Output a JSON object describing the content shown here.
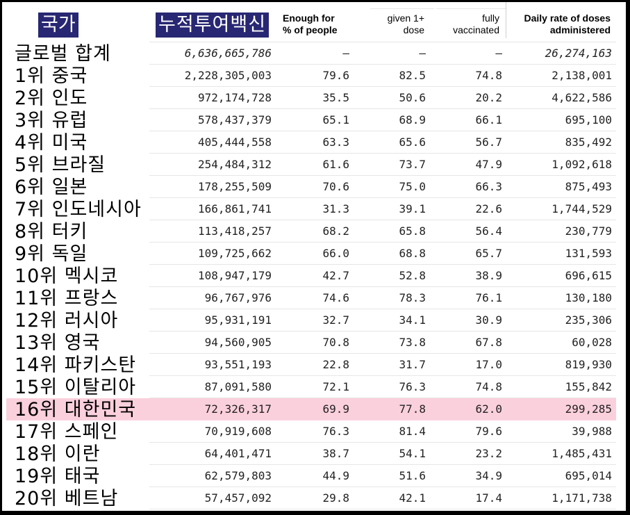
{
  "header": {
    "country_label": "국가",
    "total_label": "누적투여백신",
    "enough_label_1": "Enough for",
    "enough_label_2": "% of people",
    "given_label_1": "given 1+",
    "given_label_2": "dose",
    "fully_label_1": "fully",
    "fully_label_2": "vaccinated",
    "daily_label_1": "Daily rate of doses",
    "daily_label_2": "administered",
    "highlight_color": "#fbd0dd",
    "header_box_color": "#272773"
  },
  "rows": [
    {
      "country": "글로벌 합계",
      "total": "6,636,665,786",
      "enough": "–",
      "given": "–",
      "fully": "–",
      "daily": "26,274,163"
    },
    {
      "country": "1위 중국",
      "total": "2,228,305,003",
      "enough": "79.6",
      "given": "82.5",
      "fully": "74.8",
      "daily": "2,138,001"
    },
    {
      "country": "2위 인도",
      "total": "972,174,728",
      "enough": "35.5",
      "given": "50.6",
      "fully": "20.2",
      "daily": "4,622,586"
    },
    {
      "country": "3위 유럽",
      "total": "578,437,379",
      "enough": "65.1",
      "given": "68.9",
      "fully": "66.1",
      "daily": "695,100"
    },
    {
      "country": "4위 미국",
      "total": "405,444,558",
      "enough": "63.3",
      "given": "65.6",
      "fully": "56.7",
      "daily": "835,492"
    },
    {
      "country": "5위 브라질",
      "total": "254,484,312",
      "enough": "61.6",
      "given": "73.7",
      "fully": "47.9",
      "daily": "1,092,618"
    },
    {
      "country": "6위 일본",
      "total": "178,255,509",
      "enough": "70.6",
      "given": "75.0",
      "fully": "66.3",
      "daily": "875,493"
    },
    {
      "country": "7위 인도네시아",
      "total": "166,861,741",
      "enough": "31.3",
      "given": "39.1",
      "fully": "22.6",
      "daily": "1,744,529"
    },
    {
      "country": "8위 터키",
      "total": "113,418,257",
      "enough": "68.2",
      "given": "65.8",
      "fully": "56.4",
      "daily": "230,779"
    },
    {
      "country": "9위 독일",
      "total": "109,725,662",
      "enough": "66.0",
      "given": "68.8",
      "fully": "65.7",
      "daily": "131,593"
    },
    {
      "country": "10위 멕시코",
      "total": "108,947,179",
      "enough": "42.7",
      "given": "52.8",
      "fully": "38.9",
      "daily": "696,615"
    },
    {
      "country": "11위 프랑스",
      "total": "96,767,976",
      "enough": "74.6",
      "given": "78.3",
      "fully": "76.1",
      "daily": "130,180"
    },
    {
      "country": "12위 러시아",
      "total": "95,931,191",
      "enough": "32.7",
      "given": "34.1",
      "fully": "30.9",
      "daily": "235,306"
    },
    {
      "country": "13위 영국",
      "total": "94,560,905",
      "enough": "70.8",
      "given": "73.8",
      "fully": "67.8",
      "daily": "60,028"
    },
    {
      "country": "14위 파키스탄",
      "total": "93,551,193",
      "enough": "22.8",
      "given": "31.7",
      "fully": "17.0",
      "daily": "819,930"
    },
    {
      "country": "15위 이탈리아",
      "total": "87,091,580",
      "enough": "72.1",
      "given": "76.3",
      "fully": "74.8",
      "daily": "155,842"
    },
    {
      "country": "16위 대한민국",
      "total": "72,326,317",
      "enough": "69.9",
      "given": "77.8",
      "fully": "62.0",
      "daily": "299,285"
    },
    {
      "country": "17위 스페인",
      "total": "70,919,608",
      "enough": "76.3",
      "given": "81.4",
      "fully": "79.6",
      "daily": "39,988"
    },
    {
      "country": "18위 이란",
      "total": "64,401,471",
      "enough": "38.7",
      "given": "54.1",
      "fully": "23.2",
      "daily": "1,485,431"
    },
    {
      "country": "19위 태국",
      "total": "62,579,803",
      "enough": "44.9",
      "given": "51.6",
      "fully": "34.9",
      "daily": "695,014"
    },
    {
      "country": "20위 베트남",
      "total": "57,457,092",
      "enough": "29.8",
      "given": "42.1",
      "fully": "17.4",
      "daily": "1,171,738"
    }
  ]
}
